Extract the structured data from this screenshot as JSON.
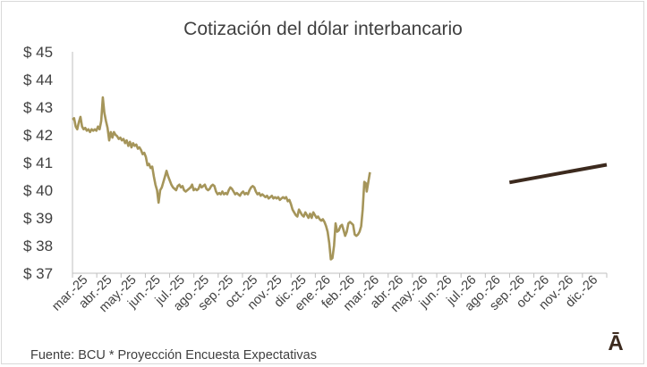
{
  "chart_data": {
    "type": "line",
    "title": "Cotización del dólar interbancario",
    "source": "Fuente: BCU * Proyección Encuesta Expectativas",
    "logo_text": "Ā",
    "xlabel": "",
    "ylabel": "",
    "ylim": [
      37,
      45
    ],
    "yticks": [
      37,
      38,
      39,
      40,
      41,
      42,
      43,
      44,
      45
    ],
    "ytick_prefix": "$ ",
    "x_range": [
      "2025-03-01",
      "2026-12-31"
    ],
    "categories": [
      "mar.-25",
      "abr.-25",
      "may.-25",
      "jun.-25",
      "jul.-25",
      "ago.-25",
      "sep.-25",
      "oct.-25",
      "nov.-25",
      "dic.-25",
      "ene.-26",
      "feb.-26",
      "mar.-26",
      "abr.-26",
      "may.-26",
      "jun.-26",
      "jul.-26",
      "ago.-26",
      "sep.-26",
      "oct.-26",
      "nov.-26",
      "dic.-26"
    ],
    "grid": false,
    "legend": "none",
    "colors": {
      "actual": "#a5955a",
      "projection": "#3c2a1e",
      "axis": "#bfbfbf",
      "text": "#404040"
    },
    "series": [
      {
        "values": [
          [
            "2025-03-01",
            42.55
          ],
          [
            "2025-03-03",
            42.6
          ],
          [
            "2025-03-05",
            42.3
          ],
          [
            "2025-03-07",
            42.2
          ],
          [
            "2025-03-09",
            42.45
          ],
          [
            "2025-03-11",
            42.65
          ],
          [
            "2025-03-13",
            42.3
          ],
          [
            "2025-03-15",
            42.2
          ],
          [
            "2025-03-17",
            42.25
          ],
          [
            "2025-03-19",
            42.15
          ],
          [
            "2025-03-21",
            42.2
          ],
          [
            "2025-03-23",
            42.1
          ],
          [
            "2025-03-25",
            42.2
          ],
          [
            "2025-03-27",
            42.15
          ],
          [
            "2025-03-29",
            42.2
          ],
          [
            "2025-03-31",
            42.15
          ],
          [
            "2025-04-02",
            42.3
          ],
          [
            "2025-04-04",
            42.2
          ],
          [
            "2025-04-06",
            42.5
          ],
          [
            "2025-04-08",
            43.35
          ],
          [
            "2025-04-10",
            42.8
          ],
          [
            "2025-04-12",
            42.5
          ],
          [
            "2025-04-14",
            42.25
          ],
          [
            "2025-04-16",
            41.8
          ],
          [
            "2025-04-18",
            42.1
          ],
          [
            "2025-04-20",
            41.9
          ],
          [
            "2025-04-22",
            42.1
          ],
          [
            "2025-04-24",
            42.0
          ],
          [
            "2025-04-26",
            41.95
          ],
          [
            "2025-04-28",
            41.85
          ],
          [
            "2025-04-30",
            41.9
          ],
          [
            "2025-05-02",
            41.8
          ],
          [
            "2025-05-04",
            41.85
          ],
          [
            "2025-05-06",
            41.7
          ],
          [
            "2025-05-08",
            41.8
          ],
          [
            "2025-05-10",
            41.6
          ],
          [
            "2025-05-12",
            41.75
          ],
          [
            "2025-05-14",
            41.55
          ],
          [
            "2025-05-16",
            41.7
          ],
          [
            "2025-05-18",
            41.6
          ],
          [
            "2025-05-20",
            41.65
          ],
          [
            "2025-05-22",
            41.5
          ],
          [
            "2025-05-24",
            41.55
          ],
          [
            "2025-05-26",
            41.45
          ],
          [
            "2025-05-28",
            41.3
          ],
          [
            "2025-05-30",
            41.35
          ],
          [
            "2025-06-01",
            41.2
          ],
          [
            "2025-06-03",
            40.9
          ],
          [
            "2025-06-05",
            40.95
          ],
          [
            "2025-06-07",
            40.8
          ],
          [
            "2025-06-09",
            40.85
          ],
          [
            "2025-06-11",
            40.5
          ],
          [
            "2025-06-13",
            40.2
          ],
          [
            "2025-06-15",
            40.0
          ],
          [
            "2025-06-17",
            39.55
          ],
          [
            "2025-06-19",
            40.0
          ],
          [
            "2025-06-21",
            40.1
          ],
          [
            "2025-06-23",
            40.3
          ],
          [
            "2025-06-25",
            40.5
          ],
          [
            "2025-06-27",
            40.7
          ],
          [
            "2025-06-29",
            40.5
          ],
          [
            "2025-07-01",
            40.35
          ],
          [
            "2025-07-03",
            40.2
          ],
          [
            "2025-07-05",
            40.1
          ],
          [
            "2025-07-07",
            40.05
          ],
          [
            "2025-07-09",
            40.0
          ],
          [
            "2025-07-11",
            40.15
          ],
          [
            "2025-07-13",
            40.2
          ],
          [
            "2025-07-15",
            40.1
          ],
          [
            "2025-07-17",
            40.15
          ],
          [
            "2025-07-19",
            40.0
          ],
          [
            "2025-07-21",
            39.95
          ],
          [
            "2025-07-23",
            40.0
          ],
          [
            "2025-07-25",
            40.05
          ],
          [
            "2025-07-27",
            40.1
          ],
          [
            "2025-07-29",
            40.2
          ],
          [
            "2025-07-31",
            40.0
          ],
          [
            "2025-08-02",
            40.05
          ],
          [
            "2025-08-04",
            40.0
          ],
          [
            "2025-08-06",
            40.05
          ],
          [
            "2025-08-08",
            40.2
          ],
          [
            "2025-08-10",
            40.1
          ],
          [
            "2025-08-12",
            40.15
          ],
          [
            "2025-08-14",
            40.2
          ],
          [
            "2025-08-16",
            40.05
          ],
          [
            "2025-08-18",
            40.0
          ],
          [
            "2025-08-20",
            40.05
          ],
          [
            "2025-08-22",
            40.15
          ],
          [
            "2025-08-24",
            40.2
          ],
          [
            "2025-08-26",
            40.15
          ],
          [
            "2025-08-28",
            39.95
          ],
          [
            "2025-08-30",
            39.85
          ],
          [
            "2025-09-01",
            39.9
          ],
          [
            "2025-09-03",
            39.85
          ],
          [
            "2025-09-05",
            39.95
          ],
          [
            "2025-09-07",
            39.85
          ],
          [
            "2025-09-09",
            39.9
          ],
          [
            "2025-09-11",
            39.85
          ],
          [
            "2025-09-13",
            40.0
          ],
          [
            "2025-09-15",
            40.1
          ],
          [
            "2025-09-17",
            40.05
          ],
          [
            "2025-09-19",
            39.95
          ],
          [
            "2025-09-21",
            39.85
          ],
          [
            "2025-09-23",
            39.9
          ],
          [
            "2025-09-25",
            39.85
          ],
          [
            "2025-09-27",
            39.8
          ],
          [
            "2025-09-29",
            39.9
          ],
          [
            "2025-10-01",
            39.95
          ],
          [
            "2025-10-03",
            39.85
          ],
          [
            "2025-10-05",
            39.9
          ],
          [
            "2025-10-07",
            39.85
          ],
          [
            "2025-10-09",
            40.0
          ],
          [
            "2025-10-11",
            40.1
          ],
          [
            "2025-10-13",
            40.15
          ],
          [
            "2025-10-15",
            40.1
          ],
          [
            "2025-10-17",
            39.95
          ],
          [
            "2025-10-19",
            39.85
          ],
          [
            "2025-10-21",
            39.9
          ],
          [
            "2025-10-23",
            39.8
          ],
          [
            "2025-10-25",
            39.85
          ],
          [
            "2025-10-27",
            39.8
          ],
          [
            "2025-10-29",
            39.75
          ],
          [
            "2025-10-31",
            39.8
          ],
          [
            "2025-11-02",
            39.7
          ],
          [
            "2025-11-04",
            39.75
          ],
          [
            "2025-11-06",
            39.8
          ],
          [
            "2025-11-08",
            39.7
          ],
          [
            "2025-11-10",
            39.75
          ],
          [
            "2025-11-12",
            39.7
          ],
          [
            "2025-11-14",
            39.75
          ],
          [
            "2025-11-16",
            39.65
          ],
          [
            "2025-11-18",
            39.7
          ],
          [
            "2025-11-20",
            39.75
          ],
          [
            "2025-11-22",
            39.7
          ],
          [
            "2025-11-24",
            39.75
          ],
          [
            "2025-11-26",
            39.6
          ],
          [
            "2025-11-28",
            39.65
          ],
          [
            "2025-11-30",
            39.5
          ],
          [
            "2025-12-02",
            39.3
          ],
          [
            "2025-12-04",
            39.2
          ],
          [
            "2025-12-06",
            39.1
          ],
          [
            "2025-12-08",
            39.05
          ],
          [
            "2025-12-10",
            39.3
          ],
          [
            "2025-12-12",
            39.2
          ],
          [
            "2025-12-14",
            39.1
          ],
          [
            "2025-12-16",
            39.05
          ],
          [
            "2025-12-18",
            39.2
          ],
          [
            "2025-12-20",
            39.1
          ],
          [
            "2025-12-22",
            39.0
          ],
          [
            "2025-12-24",
            39.15
          ],
          [
            "2025-12-26",
            39.0
          ],
          [
            "2025-12-28",
            39.2
          ],
          [
            "2025-12-30",
            39.1
          ],
          [
            "2026-01-01",
            39.0
          ],
          [
            "2026-01-03",
            39.05
          ],
          [
            "2026-01-05",
            38.95
          ],
          [
            "2026-01-07",
            38.9
          ],
          [
            "2026-01-09",
            38.95
          ],
          [
            "2026-01-11",
            38.85
          ],
          [
            "2026-01-13",
            38.7
          ],
          [
            "2026-01-15",
            38.5
          ],
          [
            "2026-01-17",
            38.1
          ],
          [
            "2026-01-19",
            37.5
          ],
          [
            "2026-01-21",
            37.55
          ],
          [
            "2026-01-23",
            38.0
          ],
          [
            "2026-01-25",
            38.8
          ],
          [
            "2026-01-27",
            38.5
          ],
          [
            "2026-01-29",
            38.55
          ],
          [
            "2026-01-31",
            38.7
          ],
          [
            "2026-02-02",
            38.75
          ],
          [
            "2026-02-04",
            38.55
          ],
          [
            "2026-02-06",
            38.35
          ],
          [
            "2026-02-08",
            38.5
          ],
          [
            "2026-02-10",
            38.8
          ],
          [
            "2026-02-12",
            38.85
          ],
          [
            "2026-02-14",
            38.8
          ],
          [
            "2026-02-16",
            38.75
          ],
          [
            "2026-02-18",
            38.4
          ],
          [
            "2026-02-20",
            38.35
          ],
          [
            "2026-02-22",
            38.4
          ],
          [
            "2026-02-24",
            38.5
          ],
          [
            "2026-02-26",
            38.7
          ],
          [
            "2026-02-28",
            39.3
          ],
          [
            "2026-03-02",
            40.3
          ],
          [
            "2026-03-04",
            40.25
          ],
          [
            "2026-03-05",
            39.95
          ],
          [
            "2026-03-07",
            40.3
          ],
          [
            "2026-03-09",
            40.65
          ]
        ]
      },
      {
        "values": [
          [
            "2026-08-31",
            40.28
          ],
          [
            "2026-12-31",
            40.92
          ]
        ]
      }
    ]
  }
}
